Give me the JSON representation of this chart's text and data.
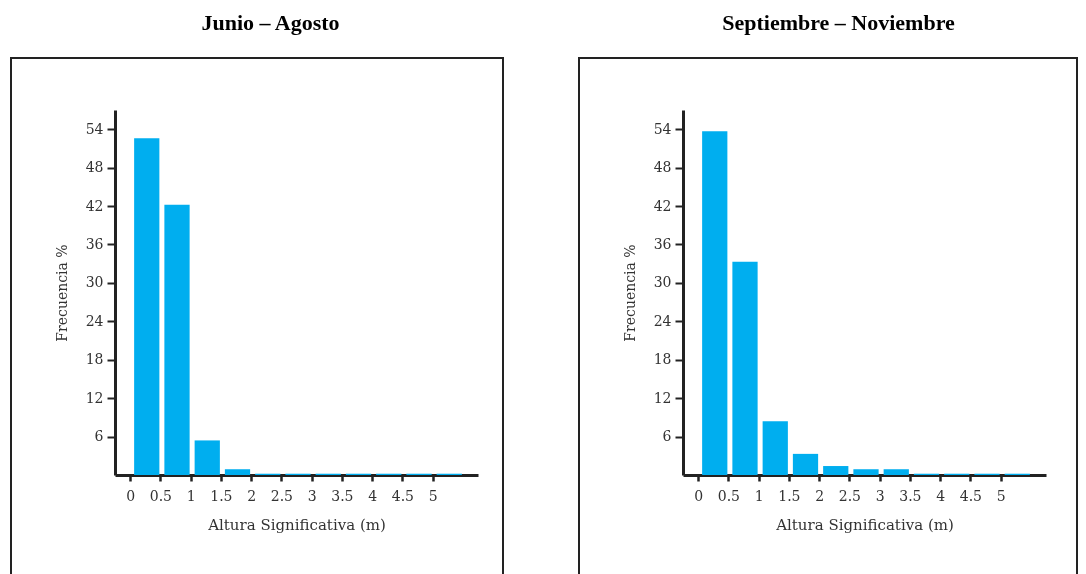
{
  "chart_data": [
    {
      "type": "histogram",
      "title": "Junio – Agosto",
      "xlabel": "Altura Significativa (m)",
      "ylabel": "Frecuencia %",
      "bins": [
        0,
        0.5,
        1,
        1.5,
        2,
        2.5,
        3,
        3.5,
        4,
        4.5,
        5,
        5.5
      ],
      "values": [
        52.6,
        42.2,
        5.4,
        0.9,
        0.2,
        0.2,
        0.2,
        0.2,
        0.2,
        0.2,
        0.2
      ],
      "color": "#00aeef",
      "xlim": [
        -0.25,
        5.75
      ],
      "xticks": [
        0,
        0.5,
        1,
        1.5,
        2,
        2.5,
        3,
        3.5,
        4,
        4.5,
        5
      ],
      "ylim": [
        0,
        57
      ],
      "yticks": [
        6,
        12,
        18,
        24,
        30,
        36,
        42,
        48,
        54
      ],
      "grid": false,
      "legend": false
    },
    {
      "type": "histogram",
      "title": "Septiembre – Noviembre",
      "xlabel": "Altura Significativa (m)",
      "ylabel": "Frecuencia %",
      "bins": [
        0,
        0.5,
        1,
        1.5,
        2,
        2.5,
        3,
        3.5,
        4,
        4.5,
        5,
        5.5
      ],
      "values": [
        53.7,
        33.3,
        8.4,
        3.3,
        1.4,
        0.9,
        0.9,
        0.2,
        0.2,
        0.2,
        0.2
      ],
      "color": "#00aeef",
      "xlim": [
        -0.25,
        5.75
      ],
      "xticks": [
        0,
        0.5,
        1,
        1.5,
        2,
        2.5,
        3,
        3.5,
        4,
        4.5,
        5
      ],
      "ylim": [
        0,
        57
      ],
      "yticks": [
        6,
        12,
        18,
        24,
        30,
        36,
        42,
        48,
        54
      ],
      "grid": false,
      "legend": false
    }
  ]
}
